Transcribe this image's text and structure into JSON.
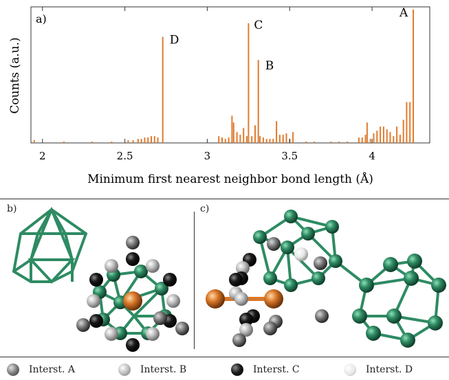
{
  "chart_data": {
    "type": "bar",
    "panel_label": "a)",
    "xlabel": "Minimum first nearest neighbor bond length (Å)",
    "ylabel": "Counts (a.u.)",
    "xlim": [
      1.93,
      4.35
    ],
    "ylim": [
      0,
      1.0
    ],
    "xticks": [
      "2",
      "2.5",
      "3",
      "3.5",
      "4"
    ],
    "xtick_values": [
      2,
      2.5,
      3,
      3.5,
      4
    ],
    "bar_color": "#e07b2e",
    "x": [
      1.95,
      2.13,
      2.3,
      2.42,
      2.52,
      2.55,
      2.58,
      2.6,
      2.62,
      2.64,
      2.66,
      2.68,
      2.7,
      2.73,
      3.07,
      3.09,
      3.11,
      3.13,
      3.15,
      3.16,
      3.18,
      3.2,
      3.22,
      3.24,
      3.25,
      3.27,
      3.29,
      3.31,
      3.32,
      3.34,
      3.36,
      3.38,
      3.4,
      3.42,
      3.44,
      3.46,
      3.48,
      3.5,
      3.52,
      3.6,
      3.65,
      3.75,
      3.8,
      3.85,
      3.92,
      3.94,
      3.96,
      3.97,
      3.99,
      4.01,
      4.03,
      4.05,
      4.07,
      4.09,
      4.11,
      4.13,
      4.15,
      4.17,
      4.19,
      4.21,
      4.23,
      4.25
    ],
    "values": [
      0.02,
      0.01,
      0.01,
      0.01,
      0.02,
      0.02,
      0.03,
      0.03,
      0.04,
      0.04,
      0.05,
      0.05,
      0.04,
      0.78,
      0.05,
      0.04,
      0.03,
      0.04,
      0.2,
      0.15,
      0.08,
      0.06,
      0.11,
      0.05,
      0.88,
      0.05,
      0.13,
      0.61,
      0.05,
      0.04,
      0.03,
      0.03,
      0.03,
      0.16,
      0.06,
      0.06,
      0.07,
      0.03,
      0.08,
      0.01,
      0.01,
      0.01,
      0.01,
      0.01,
      0.04,
      0.04,
      0.06,
      0.15,
      0.03,
      0.07,
      0.09,
      0.12,
      0.12,
      0.1,
      0.08,
      0.05,
      0.12,
      0.06,
      0.17,
      0.3,
      0.3,
      0.98
    ],
    "annotations": [
      {
        "text": "A",
        "x": 4.25,
        "y": 0.98
      },
      {
        "text": "B",
        "x": 3.31,
        "y": 0.61
      },
      {
        "text": "C",
        "x": 3.25,
        "y": 0.88
      },
      {
        "text": "D",
        "x": 2.73,
        "y": 0.78
      }
    ]
  },
  "panels": {
    "b_label": "b)",
    "c_label": "c)"
  },
  "colors": {
    "boron_green": "#2e8b63",
    "dopant_orange": "#d9782a",
    "interst_a": "#7a7a7a",
    "interst_b": "#bdbdbd",
    "interst_c": "#1a1a1a",
    "interst_d": "#e6e6e6"
  },
  "legend": [
    {
      "label": "Interst. A",
      "color": "#7a7a7a"
    },
    {
      "label": "Interst. B",
      "color": "#bdbdbd"
    },
    {
      "label": "Interst. C",
      "color": "#1a1a1a"
    },
    {
      "label": "Interst. D",
      "color": "#e6e6e6"
    }
  ]
}
